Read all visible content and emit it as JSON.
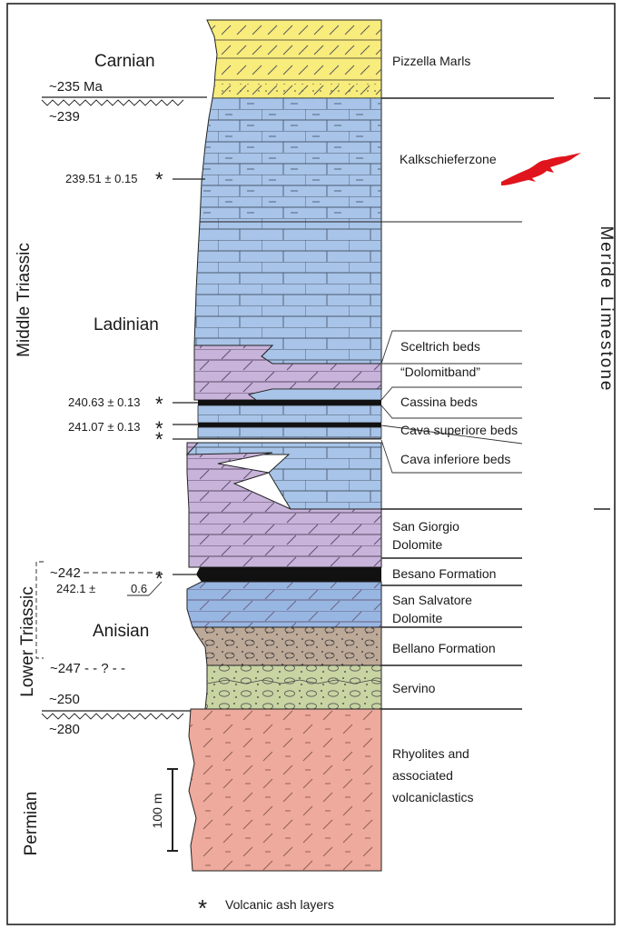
{
  "colors": {
    "carnian_fill": "#f7ec7c",
    "limestone_fill": "#a8c4e8",
    "dolomite_fill": "#c8b3da",
    "besano_fill": "#111111",
    "san_salvatore_fill": "#98b6e2",
    "bellano_fill": "#bda998",
    "servino_fill": "#c8d4a2",
    "permian_fill": "#eeaa9c",
    "reptile_fill": "#e0141c"
  },
  "ages": {
    "a235": "~235 Ma",
    "a239": "~239",
    "a242": "~242",
    "a247": "~247 - - ? - -",
    "a250": "~250",
    "a280": "~280"
  },
  "periods": {
    "carnian": "Carnian",
    "ladinian": "Ladinian",
    "anisian": "Anisian",
    "middle_triassic": "Middle Triassic",
    "lower_triassic": "Lower Triassic",
    "permian": "Permian"
  },
  "dates": {
    "d1": "239.51 ± 0.15",
    "d2": "240.63 ± 0.13",
    "d3": "241.07 ± 0.13",
    "d4_main": "242.1 ±",
    "d4_err": "0.6"
  },
  "units": {
    "pizzella": "Pizzella Marls",
    "kalkschiefer": "Kalkschieferzone",
    "sceltrich": "Sceltrich beds",
    "dolomitband": "“Dolomitband”",
    "cassina": "Cassina beds",
    "cava_sup": "Cava superiore beds",
    "cava_inf": "Cava inferiore beds",
    "san_giorgio_1": "San Giorgio",
    "san_giorgio_2": "Dolomite",
    "besano": "Besano Formation",
    "san_salvatore_1": "San Salvatore",
    "san_salvatore_2": "Dolomite",
    "bellano": "Bellano Formation",
    "servino": "Servino",
    "rhyolites_1": "Rhyolites and",
    "rhyolites_2": "associated",
    "rhyolites_3": "volcaniclastics"
  },
  "formation": "Meride Limestone",
  "scale_bar": "100 m",
  "legend": {
    "symbol": "*",
    "text": "Volcanic ash layers"
  }
}
